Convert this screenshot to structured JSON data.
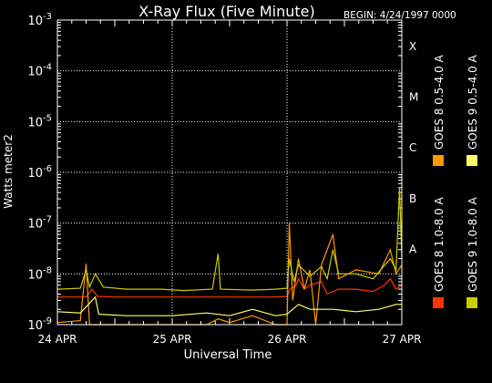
{
  "chart_data": {
    "type": "line",
    "title": "X-Ray Flux (Five Minute)",
    "begin_label": "BEGIN: 4/24/1997 0000",
    "xlabel": "Universal Time",
    "ylabel": "Watts meter2",
    "x_ticks": [
      {
        "label": "24 APR",
        "day": 0
      },
      {
        "label": "25 APR",
        "day": 1
      },
      {
        "label": "26 APR",
        "day": 2
      },
      {
        "label": "27 APR",
        "day": 3
      }
    ],
    "x_range_days": [
      0,
      3
    ],
    "y_scale": "log",
    "y_range_exp": [
      -9,
      -3
    ],
    "y_ticks": [
      {
        "base": "10",
        "exp": "-9",
        "value": 1e-09
      },
      {
        "base": "10",
        "exp": "-8",
        "value": 1e-08
      },
      {
        "base": "10",
        "exp": "-7",
        "value": 1e-07
      },
      {
        "base": "10",
        "exp": "-6",
        "value": 1e-06
      },
      {
        "base": "10",
        "exp": "-5",
        "value": 1e-05
      },
      {
        "base": "10",
        "exp": "-4",
        "value": 0.0001
      },
      {
        "base": "10",
        "exp": "-3",
        "value": 0.001
      }
    ],
    "flare_classes": [
      {
        "label": "X",
        "value": 0.0001
      },
      {
        "label": "M",
        "value": 1e-05
      },
      {
        "label": "C",
        "value": 1e-06
      },
      {
        "label": "B",
        "value": 1e-07
      },
      {
        "label": "A",
        "value": 1e-08
      }
    ],
    "grid": true,
    "legend_position": "right",
    "series": [
      {
        "name": "GOES 8 1.0-8.0 A",
        "color": "#ff3300",
        "points": [
          [
            0,
            3.5e-09
          ],
          [
            0.25,
            3.5e-09
          ],
          [
            0.3,
            5e-09
          ],
          [
            0.35,
            3.6e-09
          ],
          [
            0.5,
            3.5e-09
          ],
          [
            1.0,
            3.5e-09
          ],
          [
            1.5,
            3.5e-09
          ],
          [
            1.9,
            3.5e-09
          ],
          [
            2.0,
            3.6e-09
          ],
          [
            2.03,
            5e-09
          ],
          [
            2.08,
            6e-09
          ],
          [
            2.1,
            8e-09
          ],
          [
            2.15,
            5e-09
          ],
          [
            2.2,
            6e-09
          ],
          [
            2.3,
            7e-09
          ],
          [
            2.35,
            4e-09
          ],
          [
            2.45,
            5e-09
          ],
          [
            2.6,
            5e-09
          ],
          [
            2.75,
            4.5e-09
          ],
          [
            2.85,
            6e-09
          ],
          [
            2.9,
            8e-09
          ],
          [
            2.95,
            5e-09
          ],
          [
            3.0,
            6e-09
          ]
        ]
      },
      {
        "name": "GOES 8 0.5-4.0 A",
        "color": "#ff9900",
        "points": [
          [
            0,
            1.1e-09
          ],
          [
            0.2,
            1.2e-09
          ],
          [
            0.25,
            1.6e-08
          ],
          [
            0.28,
            1e-09
          ],
          [
            0.55,
            1e-09
          ],
          [
            1.3,
            1e-09
          ],
          [
            1.4,
            1.3e-09
          ],
          [
            1.5,
            1.1e-09
          ],
          [
            1.7,
            1.5e-09
          ],
          [
            1.9,
            1e-09
          ],
          [
            2.0,
            1e-09
          ],
          [
            2.02,
            1e-07
          ],
          [
            2.05,
            3e-09
          ],
          [
            2.1,
            2e-08
          ],
          [
            2.15,
            5e-09
          ],
          [
            2.2,
            1.2e-08
          ],
          [
            2.25,
            1e-09
          ],
          [
            2.3,
            1.5e-08
          ],
          [
            2.4,
            6e-08
          ],
          [
            2.45,
            8e-09
          ],
          [
            2.6,
            1.2e-08
          ],
          [
            2.8,
            1e-08
          ],
          [
            2.9,
            3e-08
          ],
          [
            2.95,
            1e-08
          ],
          [
            3.0,
            1.5e-08
          ]
        ]
      },
      {
        "name": "GOES 9 0.5-4.0 A",
        "color": "#ffff66",
        "points": [
          [
            0,
            1.8e-09
          ],
          [
            0.2,
            1.7e-09
          ],
          [
            0.33,
            3.5e-09
          ],
          [
            0.36,
            1.6e-09
          ],
          [
            0.6,
            1.5e-09
          ],
          [
            1.0,
            1.5e-09
          ],
          [
            1.3,
            1.7e-09
          ],
          [
            1.5,
            1.5e-09
          ],
          [
            1.7,
            2e-09
          ],
          [
            1.9,
            1.5e-09
          ],
          [
            2.0,
            1.6e-09
          ],
          [
            2.1,
            2.5e-09
          ],
          [
            2.2,
            2e-09
          ],
          [
            2.4,
            2e-09
          ],
          [
            2.6,
            1.8e-09
          ],
          [
            2.8,
            2e-09
          ],
          [
            2.95,
            2.5e-09
          ],
          [
            3.0,
            2.5e-09
          ]
        ]
      },
      {
        "name": "GOES 9 1.0-8.0 A",
        "color": "#cccc00",
        "points": [
          [
            0,
            5e-09
          ],
          [
            0.2,
            5.2e-09
          ],
          [
            0.25,
            1.2e-08
          ],
          [
            0.28,
            5.5e-09
          ],
          [
            0.33,
            1e-08
          ],
          [
            0.4,
            5.5e-09
          ],
          [
            0.6,
            5e-09
          ],
          [
            0.9,
            5e-09
          ],
          [
            1.1,
            4.7e-09
          ],
          [
            1.35,
            5e-09
          ],
          [
            1.4,
            2.5e-08
          ],
          [
            1.42,
            5e-09
          ],
          [
            1.7,
            4.8e-09
          ],
          [
            1.9,
            5e-09
          ],
          [
            2.0,
            5.2e-09
          ],
          [
            2.02,
            2e-08
          ],
          [
            2.06,
            7e-09
          ],
          [
            2.1,
            1.5e-08
          ],
          [
            2.2,
            9e-09
          ],
          [
            2.3,
            1.4e-08
          ],
          [
            2.35,
            8e-09
          ],
          [
            2.4,
            3e-08
          ],
          [
            2.45,
            1e-08
          ],
          [
            2.6,
            1e-08
          ],
          [
            2.75,
            8e-09
          ],
          [
            2.9,
            2e-08
          ],
          [
            2.95,
            1.2e-08
          ],
          [
            2.98,
            5e-07
          ],
          [
            3.0,
            2e-08
          ]
        ]
      }
    ]
  }
}
